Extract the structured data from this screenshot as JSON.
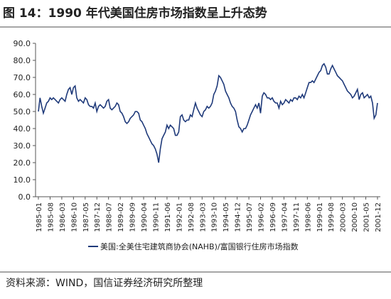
{
  "chart_data": {
    "type": "line",
    "title": "图 14：1990 年代美国住房市场指数呈上升态势",
    "source": "资料来源：WIND，国信证券经济研究所整理",
    "categories": [
      "1985-01",
      null,
      null,
      null,
      null,
      null,
      null,
      "1985-08",
      null,
      null,
      null,
      null,
      null,
      null,
      "1986-03",
      null,
      null,
      null,
      null,
      null,
      null,
      "1986-10",
      null,
      null,
      null,
      null,
      null,
      null,
      "1987-05",
      null,
      null,
      null,
      null,
      null,
      null,
      "1987-12",
      null,
      null,
      null,
      null,
      null,
      null,
      "1988-07",
      null,
      null,
      null,
      null,
      null,
      null,
      "1989-02",
      null,
      null,
      null,
      null,
      null,
      null,
      "1989-09",
      null,
      null,
      null,
      null,
      null,
      null,
      "1990-04",
      null,
      null,
      null,
      null,
      null,
      null,
      "1990-11",
      null,
      null,
      null,
      null,
      null,
      null,
      "1991-06",
      null,
      null,
      null,
      null,
      null,
      null,
      "1992-01",
      null,
      null,
      null,
      null,
      null,
      null,
      "1992-08",
      null,
      null,
      null,
      null,
      null,
      null,
      "1993-03",
      null,
      null,
      null,
      null,
      null,
      null,
      "1993-10",
      null,
      null,
      null,
      null,
      null,
      null,
      "1994-05",
      null,
      null,
      null,
      null,
      null,
      null,
      "1994-12",
      null,
      null,
      null,
      null,
      null,
      null,
      "1995-07",
      null,
      null,
      null,
      null,
      null,
      null,
      "1996-02",
      null,
      null,
      null,
      null,
      null,
      null,
      "1996-09",
      null,
      null,
      null,
      null,
      null,
      null,
      "1997-04",
      null,
      null,
      null,
      null,
      null,
      null,
      "1997-11",
      null,
      null,
      null,
      null,
      null,
      null,
      "1998-06",
      null,
      null,
      null,
      null,
      null,
      null,
      "1999-01",
      null,
      null,
      null,
      null,
      null,
      null,
      "1999-08",
      null,
      null,
      null,
      null,
      null,
      null,
      "2000-03",
      null,
      null,
      null,
      null,
      null,
      null,
      "2000-10",
      null,
      null,
      null,
      null,
      null,
      null,
      "2001-05",
      null,
      null,
      null,
      null,
      null,
      null,
      "2001-12"
    ],
    "series": [
      {
        "name": "美国:全美住宅建筑商协会(NAHB)/富国银行住房市场指数",
        "color": "#1f3a7a",
        "values": [
          50,
          58,
          53,
          49,
          52,
          55,
          56,
          58,
          57,
          58,
          57,
          56,
          55,
          57,
          58,
          57,
          56,
          60,
          63,
          64,
          60,
          64,
          65,
          58,
          56,
          57,
          56,
          55,
          58,
          57,
          54,
          53,
          53,
          52,
          55,
          50,
          53,
          54,
          53,
          52,
          53,
          56,
          57,
          52,
          51,
          52,
          53,
          55,
          54,
          50,
          49,
          47,
          44,
          43,
          44,
          46,
          47,
          48,
          50,
          50,
          49,
          45,
          44,
          42,
          40,
          37,
          35,
          33,
          31,
          30,
          28,
          25,
          20,
          28,
          34,
          36,
          38,
          42,
          40,
          42,
          41,
          40,
          36,
          36,
          38,
          47,
          48,
          45,
          44,
          45,
          45,
          48,
          47,
          51,
          55,
          52,
          50,
          48,
          47,
          50,
          51,
          53,
          52,
          53,
          55,
          60,
          62,
          65,
          71,
          70,
          68,
          66,
          62,
          60,
          58,
          55,
          53,
          52,
          50,
          45,
          41,
          40,
          38,
          40,
          40,
          42,
          45,
          48,
          50,
          52,
          54,
          52,
          55,
          49,
          59,
          61,
          60,
          58,
          58,
          57,
          58,
          56,
          55,
          55,
          52,
          56,
          54,
          55,
          57,
          56,
          55,
          57,
          56,
          58,
          58,
          57,
          59,
          58,
          60,
          58,
          61,
          64,
          67,
          67,
          68,
          67,
          69,
          71,
          73,
          74,
          77,
          78,
          76,
          72,
          72,
          75,
          77,
          75,
          73,
          71,
          70,
          69,
          68,
          66,
          64,
          62,
          61,
          60,
          58,
          59,
          61,
          63,
          57,
          60,
          61,
          58,
          59,
          60,
          58,
          59,
          55,
          46,
          48,
          55
        ]
      }
    ],
    "ylim": [
      0,
      90
    ],
    "yticks": [
      {
        "value": 0,
        "label": "0.0"
      },
      {
        "value": 10,
        "label": "10.0"
      },
      {
        "value": 20,
        "label": "20.0"
      },
      {
        "value": 30,
        "label": "30.0"
      },
      {
        "value": 40,
        "label": "40.0"
      },
      {
        "value": 50,
        "label": "50.0"
      },
      {
        "value": 60,
        "label": "60.0"
      },
      {
        "value": 70,
        "label": "70.0"
      },
      {
        "value": 80,
        "label": "80.0"
      },
      {
        "value": 90,
        "label": "90.0"
      }
    ]
  }
}
